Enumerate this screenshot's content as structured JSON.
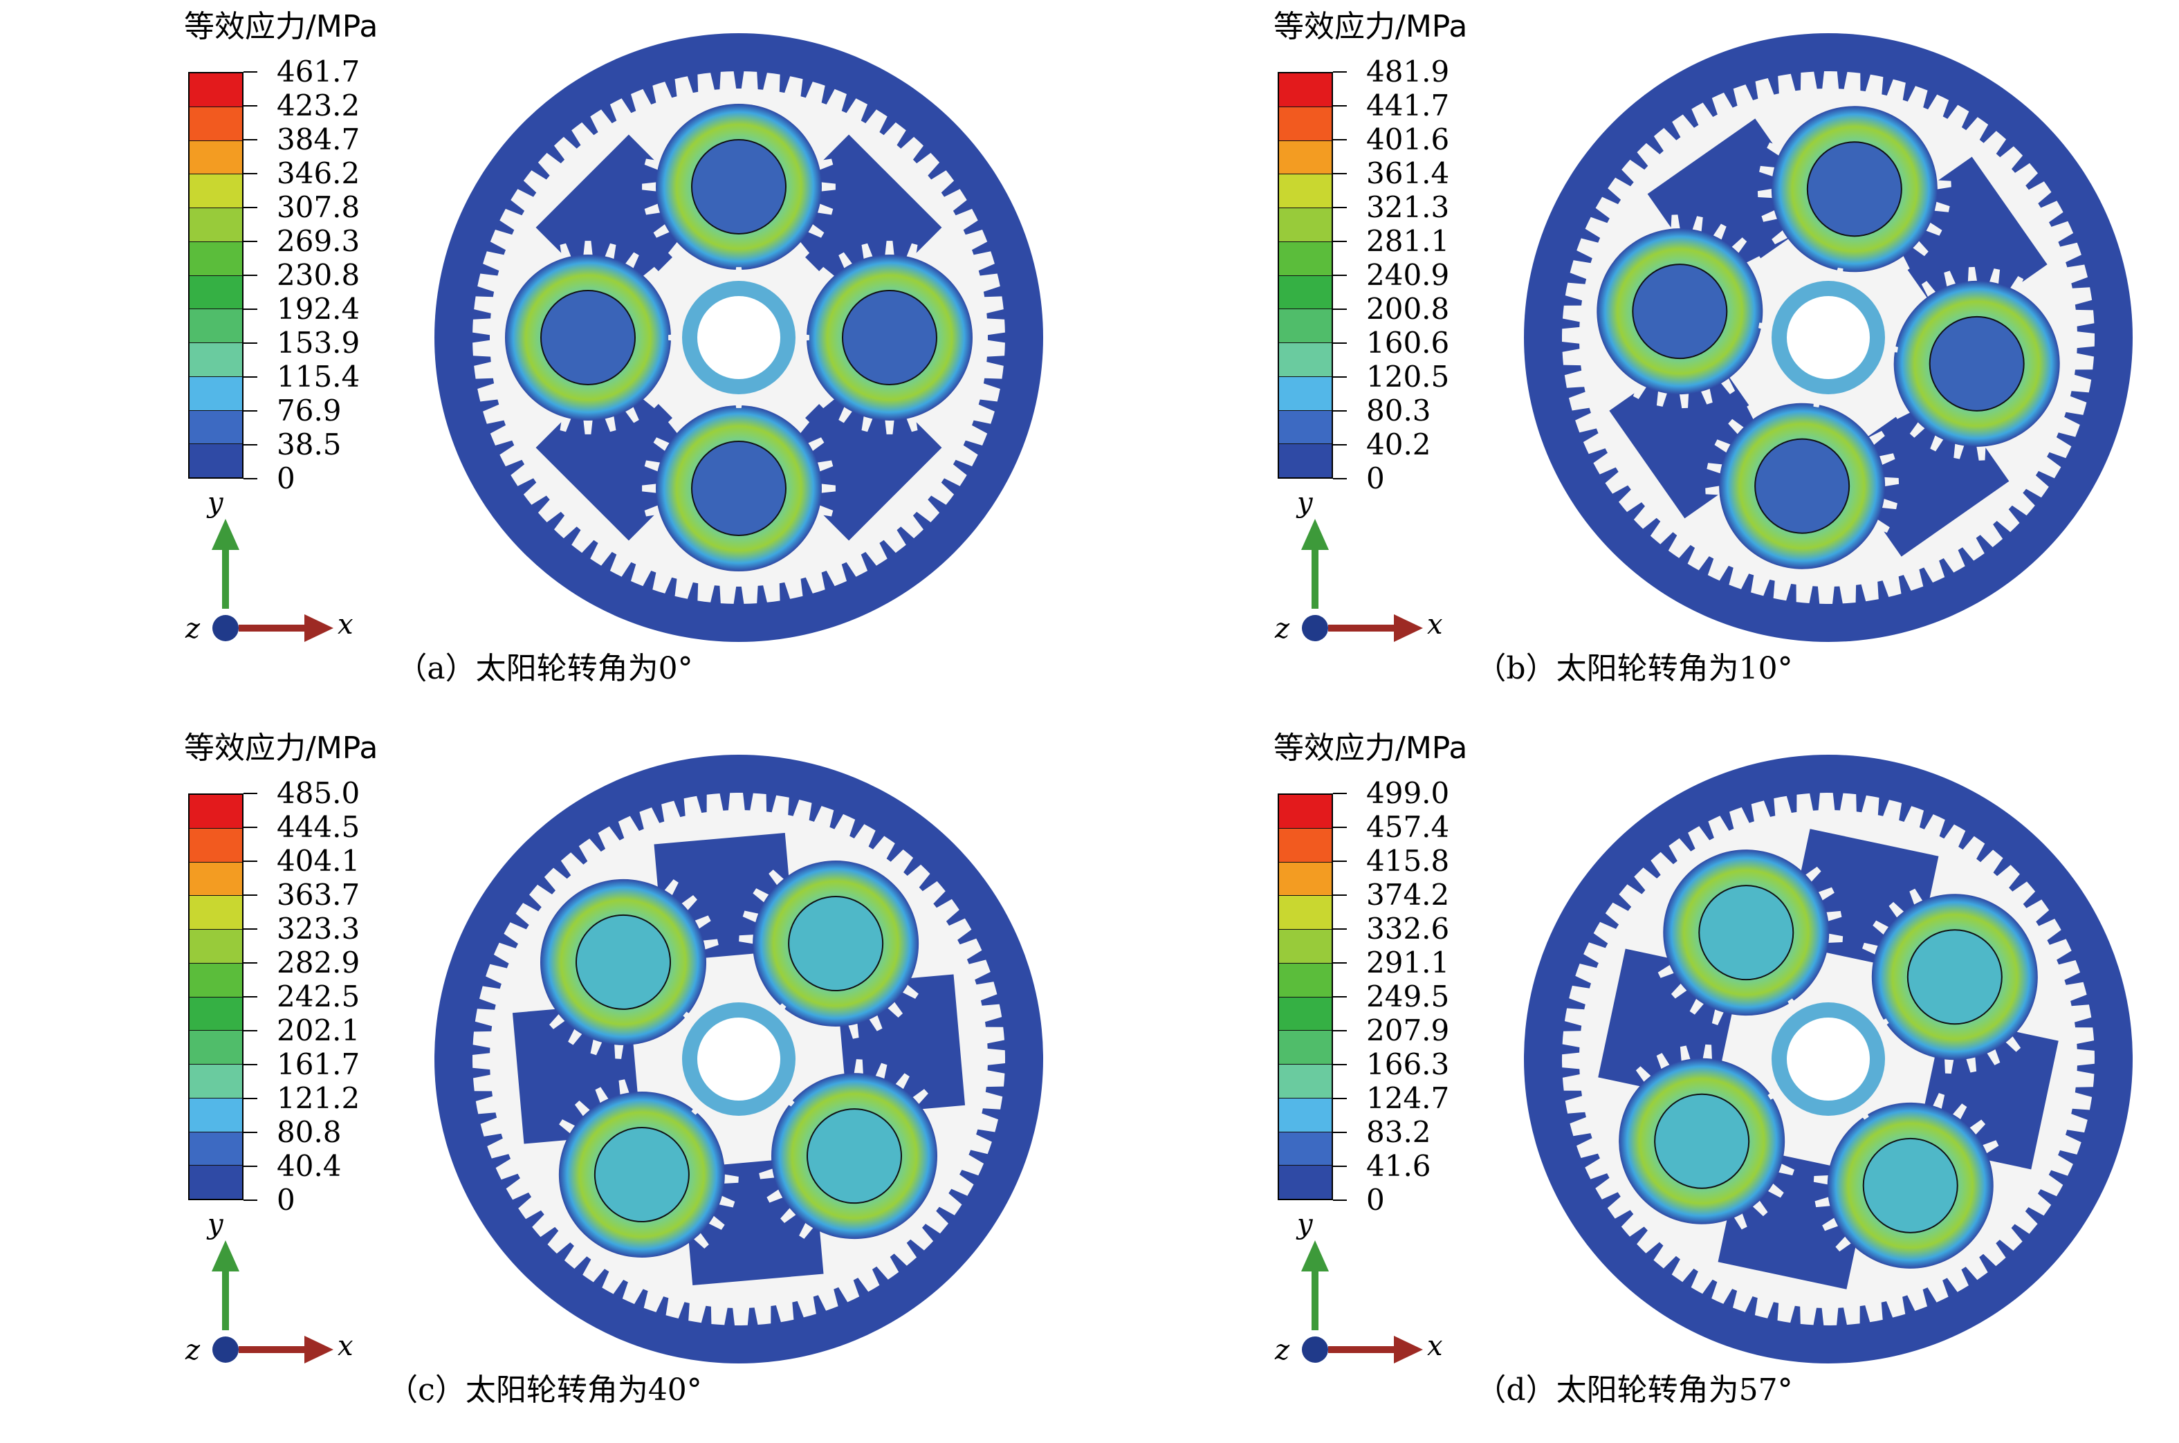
{
  "figure": {
    "colors": {
      "background": "#ffffff",
      "deep_blue": "#2f4aa5",
      "gear_light": "#f4f4f4",
      "legend": [
        "#e31a1c",
        "#f25a1f",
        "#f39c22",
        "#c9d730",
        "#98cb3a",
        "#5bbd3b",
        "#35b044",
        "#50bd6a",
        "#6acb9f",
        "#53b7e8",
        "#3d6ac2",
        "#2f4aa5"
      ]
    },
    "axis_labels": {
      "x": "x",
      "y": "y",
      "z": "z"
    },
    "panels": [
      {
        "id": "a",
        "legend_title": "等效应力/MPa",
        "legend_values": [
          "461.7",
          "423.2",
          "384.7",
          "346.2",
          "307.8",
          "269.3",
          "230.8",
          "192.4",
          "153.9",
          "115.4",
          "76.9",
          "38.5",
          "0"
        ],
        "caption": "（a）太阳轮转角为0°",
        "rotation_deg": 0
      },
      {
        "id": "b",
        "legend_title": "等效应力/MPa",
        "legend_values": [
          "481.9",
          "441.7",
          "401.6",
          "361.4",
          "321.3",
          "281.1",
          "240.9",
          "200.8",
          "160.6",
          "120.5",
          "80.3",
          "40.2",
          "0"
        ],
        "caption": "（b）太阳轮转角为10°",
        "rotation_deg": 10
      },
      {
        "id": "c",
        "legend_title": "等效应力/MPa",
        "legend_values": [
          "485.0",
          "444.5",
          "404.1",
          "363.7",
          "323.3",
          "282.9",
          "242.5",
          "202.1",
          "161.7",
          "121.2",
          "80.8",
          "40.4",
          "0"
        ],
        "caption": "（c）太阳轮转角为40°",
        "rotation_deg": 40
      },
      {
        "id": "d",
        "legend_title": "等效应力/MPa",
        "legend_values": [
          "499.0",
          "457.4",
          "415.8",
          "374.2",
          "332.6",
          "291.1",
          "249.5",
          "207.9",
          "166.3",
          "124.7",
          "83.2",
          "41.6",
          "0"
        ],
        "caption": "（d）太阳轮转角为57°",
        "rotation_deg": 57
      }
    ]
  }
}
